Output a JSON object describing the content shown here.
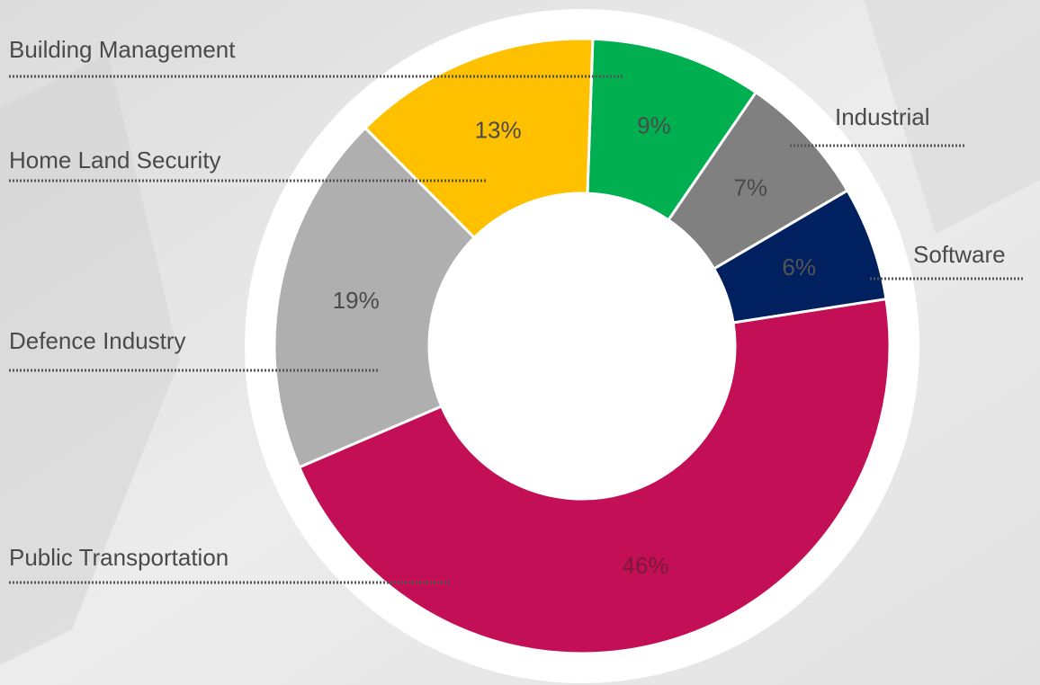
{
  "chart_data": {
    "type": "donut",
    "categories": [
      "Building Management",
      "Industrial",
      "Software",
      "Public Transportation",
      "Defence Industry",
      "Home Land Security"
    ],
    "values": [
      9,
      7,
      6,
      46,
      19,
      13
    ],
    "value_labels": [
      "9%",
      "7%",
      "6%",
      "46%",
      "19%",
      "13%"
    ],
    "colors": [
      "#00b050",
      "#808080",
      "#002060",
      "#c30f55",
      "#afafaf",
      "#ffc000"
    ]
  }
}
